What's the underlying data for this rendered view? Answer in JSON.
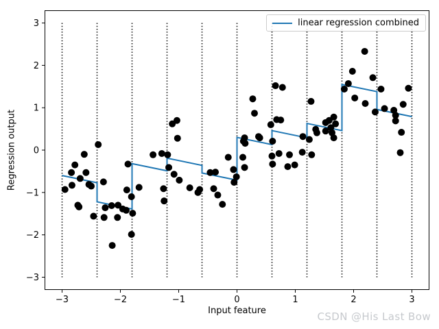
{
  "watermark": "CSDN @His Last Bow",
  "colors": {
    "line": "#1f77b4",
    "scatter": "#000000",
    "bin_boundary": "#000000",
    "axes": "#000000",
    "legend_border": "#cccccc",
    "watermark": "#c6c9cd",
    "background": "#ffffff"
  },
  "chart_data": {
    "type": "scatter",
    "title": "",
    "xlabel": "Input feature",
    "ylabel": "Regression output",
    "xlim": [
      -3.3,
      3.3
    ],
    "ylim": [
      -3.3,
      3.3
    ],
    "xticks": [
      -3,
      -2,
      -1,
      0,
      1,
      2,
      3
    ],
    "yticks": [
      -3,
      -2,
      -1,
      0,
      1,
      2,
      3
    ],
    "grid": false,
    "legend": {
      "position": "upper right",
      "entries": [
        {
          "label": "linear regression combined",
          "color": "#1f77b4",
          "type": "line"
        }
      ]
    },
    "bin_boundaries": [
      -3,
      -2.4,
      -1.8,
      -1.2,
      -0.6,
      0,
      0.6,
      1.2,
      1.8,
      2.4,
      3
    ],
    "bin_boundary_y_range": [
      -3,
      3
    ],
    "series": [
      {
        "name": "linear regression combined",
        "type": "line",
        "color": "#1f77b4",
        "points": [
          [
            -3.0,
            -0.6
          ],
          [
            -2.4,
            -0.77
          ],
          [
            -2.4,
            -1.22
          ],
          [
            -1.8,
            -1.39
          ],
          [
            -1.8,
            -0.32
          ],
          [
            -1.2,
            -0.49
          ],
          [
            -1.2,
            -0.19
          ],
          [
            -0.6,
            -0.36
          ],
          [
            -0.6,
            -0.54
          ],
          [
            0.0,
            -0.71
          ],
          [
            0.0,
            0.3
          ],
          [
            0.6,
            0.13
          ],
          [
            0.6,
            0.46
          ],
          [
            1.2,
            0.29
          ],
          [
            1.2,
            0.63
          ],
          [
            1.8,
            0.46
          ],
          [
            1.8,
            1.55
          ],
          [
            2.4,
            1.38
          ],
          [
            2.4,
            0.96
          ],
          [
            3.0,
            0.79
          ]
        ]
      },
      {
        "name": "data points",
        "type": "scatter",
        "color": "#000000",
        "marker_radius": 5,
        "points": [
          [
            -2.95,
            -0.93
          ],
          [
            -2.84,
            -0.53
          ],
          [
            -2.83,
            -0.83
          ],
          [
            -2.78,
            -0.35
          ],
          [
            -2.73,
            -1.3
          ],
          [
            -2.71,
            -1.34
          ],
          [
            -2.69,
            -0.67
          ],
          [
            -2.62,
            -0.1
          ],
          [
            -2.59,
            -0.53
          ],
          [
            -2.54,
            -0.81
          ],
          [
            -2.5,
            -0.85
          ],
          [
            -2.46,
            -1.56
          ],
          [
            -2.38,
            0.13
          ],
          [
            -2.29,
            -0.75
          ],
          [
            -2.28,
            -1.59
          ],
          [
            -2.26,
            -1.36
          ],
          [
            -2.15,
            -1.31
          ],
          [
            -2.14,
            -2.25
          ],
          [
            -2.05,
            -1.59
          ],
          [
            -2.04,
            -1.3
          ],
          [
            -1.96,
            -1.39
          ],
          [
            -1.9,
            -1.42
          ],
          [
            -1.89,
            -0.94
          ],
          [
            -1.87,
            -0.33
          ],
          [
            -1.81,
            -1.1
          ],
          [
            -1.81,
            -1.99
          ],
          [
            -1.79,
            -1.49
          ],
          [
            -1.68,
            -0.88
          ],
          [
            -1.44,
            -0.11
          ],
          [
            -1.29,
            -0.08
          ],
          [
            -1.26,
            -0.91
          ],
          [
            -1.25,
            -1.2
          ],
          [
            -1.19,
            -0.11
          ],
          [
            -1.17,
            -0.41
          ],
          [
            -1.11,
            0.62
          ],
          [
            -1.08,
            -0.57
          ],
          [
            -1.03,
            0.7
          ],
          [
            -1.02,
            0.28
          ],
          [
            -0.99,
            -0.71
          ],
          [
            -0.81,
            -0.89
          ],
          [
            -0.67,
            -1.0
          ],
          [
            -0.64,
            -0.93
          ],
          [
            -0.46,
            -0.53
          ],
          [
            -0.4,
            -0.91
          ],
          [
            -0.37,
            -0.52
          ],
          [
            -0.33,
            -1.06
          ],
          [
            -0.25,
            -1.28
          ],
          [
            -0.15,
            -0.17
          ],
          [
            -0.06,
            -0.46
          ],
          [
            -0.05,
            -0.76
          ],
          [
            -0.01,
            -0.63
          ],
          [
            0.1,
            -0.17
          ],
          [
            0.11,
            0.21
          ],
          [
            0.13,
            0.29
          ],
          [
            0.13,
            -0.41
          ],
          [
            0.14,
            0.16
          ],
          [
            0.27,
            1.21
          ],
          [
            0.3,
            0.87
          ],
          [
            0.37,
            0.32
          ],
          [
            0.39,
            0.29
          ],
          [
            0.58,
            0.6
          ],
          [
            0.6,
            -0.14
          ],
          [
            0.61,
            0.21
          ],
          [
            0.61,
            -0.33
          ],
          [
            0.66,
            1.52
          ],
          [
            0.68,
            0.72
          ],
          [
            0.72,
            -0.08
          ],
          [
            0.75,
            0.71
          ],
          [
            0.78,
            1.48
          ],
          [
            0.87,
            -0.39
          ],
          [
            0.9,
            -0.11
          ],
          [
            0.99,
            -0.35
          ],
          [
            1.12,
            -0.05
          ],
          [
            1.13,
            0.32
          ],
          [
            1.24,
            0.25
          ],
          [
            1.27,
            1.15
          ],
          [
            1.28,
            -0.11
          ],
          [
            1.35,
            0.49
          ],
          [
            1.37,
            0.41
          ],
          [
            1.52,
            0.65
          ],
          [
            1.52,
            0.45
          ],
          [
            1.58,
            0.7
          ],
          [
            1.61,
            0.53
          ],
          [
            1.63,
            0.41
          ],
          [
            1.66,
            0.78
          ],
          [
            1.66,
            0.29
          ],
          [
            1.69,
            0.62
          ],
          [
            1.84,
            1.44
          ],
          [
            1.91,
            1.57
          ],
          [
            1.98,
            1.86
          ],
          [
            2.02,
            1.23
          ],
          [
            2.19,
            2.33
          ],
          [
            2.2,
            1.1
          ],
          [
            2.33,
            1.71
          ],
          [
            2.37,
            0.9
          ],
          [
            2.47,
            1.44
          ],
          [
            2.53,
            0.98
          ],
          [
            2.69,
            0.94
          ],
          [
            2.72,
            0.82
          ],
          [
            2.72,
            0.69
          ],
          [
            2.8,
            -0.06
          ],
          [
            2.82,
            0.42
          ],
          [
            2.85,
            1.08
          ],
          [
            2.94,
            1.46
          ]
        ]
      }
    ]
  }
}
